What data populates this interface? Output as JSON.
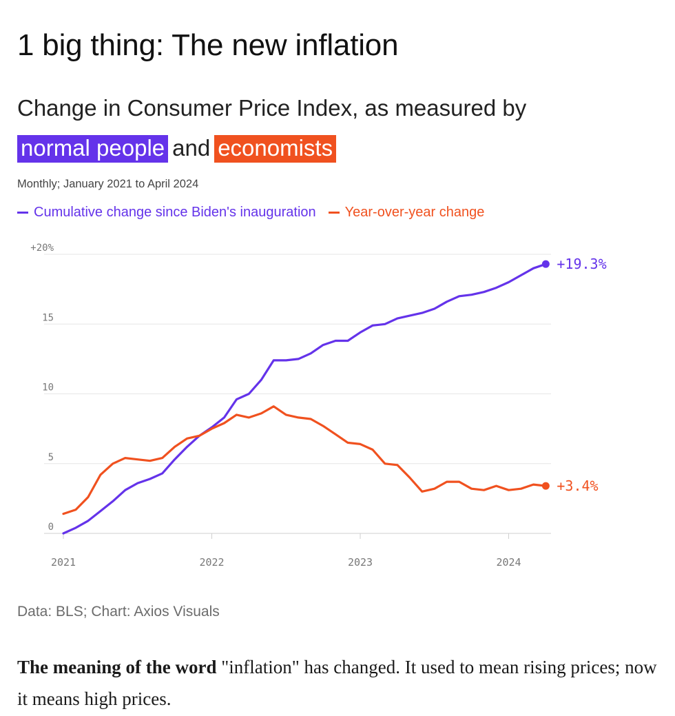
{
  "headline": "1 big thing: The new inflation",
  "subtitle": {
    "line1": "Change in Consumer Price Index, as measured by",
    "highlight1": "normal people",
    "connector": "and",
    "highlight2": "economists"
  },
  "note": "Monthly; January 2021 to April 2024",
  "source": "Data: BLS; Chart: Axios Visuals",
  "body": {
    "lead": "The meaning of the word",
    "rest": " \"inflation\" has changed. It used to mean rising prices; now it means high prices."
  },
  "colors": {
    "purple": "#6433ea",
    "orange": "#f0511f"
  },
  "chart_data": {
    "type": "line",
    "x_start": "2021-01",
    "x_end": "2024-04",
    "ylim": [
      0,
      20
    ],
    "yticks": [
      0,
      5,
      10,
      15,
      20
    ],
    "ytick_labels": [
      "0",
      "5",
      "10",
      "15",
      "+20%"
    ],
    "xticks": [
      "2021",
      "2022",
      "2023",
      "2024"
    ],
    "grid": true,
    "legend_position": "top-left",
    "series": [
      {
        "name": "Cumulative change since Biden's inauguration",
        "color": "#6433ea",
        "end_label": "+19.3%",
        "values": [
          0.0,
          0.4,
          0.9,
          1.6,
          2.3,
          3.1,
          3.6,
          3.9,
          4.3,
          5.3,
          6.2,
          7.0,
          7.6,
          8.3,
          9.6,
          10.0,
          11.0,
          12.4,
          12.4,
          12.5,
          12.9,
          13.5,
          13.8,
          13.8,
          14.4,
          14.9,
          15.0,
          15.4,
          15.6,
          15.8,
          16.1,
          16.6,
          17.0,
          17.1,
          17.3,
          17.6,
          18.0,
          18.5,
          19.0,
          19.3
        ]
      },
      {
        "name": "Year-over-year change",
        "color": "#f0511f",
        "end_label": "+3.4%",
        "values": [
          1.4,
          1.7,
          2.6,
          4.2,
          5.0,
          5.4,
          5.3,
          5.2,
          5.4,
          6.2,
          6.8,
          7.0,
          7.5,
          7.9,
          8.5,
          8.3,
          8.6,
          9.1,
          8.5,
          8.3,
          8.2,
          7.7,
          7.1,
          6.5,
          6.4,
          6.0,
          5.0,
          4.9,
          4.0,
          3.0,
          3.2,
          3.7,
          3.7,
          3.2,
          3.1,
          3.4,
          3.1,
          3.2,
          3.5,
          3.4
        ]
      }
    ]
  }
}
